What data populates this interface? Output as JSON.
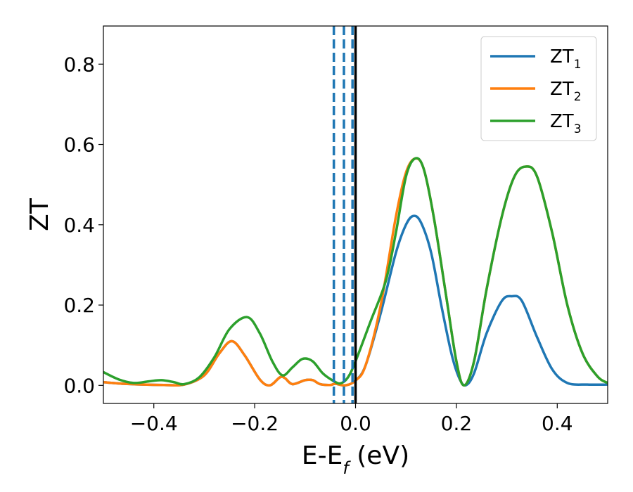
{
  "chart_data": {
    "type": "line",
    "xlabel": {
      "main": "E-E",
      "sub": "f",
      "tail": " (eV)"
    },
    "ylabel": "ZT",
    "xlim": [
      -0.5,
      0.5
    ],
    "ylim": [
      -0.045,
      0.895
    ],
    "x_ticks": [
      -0.4,
      -0.2,
      0.0,
      0.2,
      0.4
    ],
    "x_tick_labels": [
      "−0.4",
      "−0.2",
      "0.0",
      "0.2",
      "0.4"
    ],
    "y_ticks": [
      0.0,
      0.2,
      0.4,
      0.6,
      0.8
    ],
    "y_tick_labels": [
      "0.0",
      "0.2",
      "0.4",
      "0.6",
      "0.8"
    ],
    "grid": false,
    "legend_position": "top-right",
    "series": [
      {
        "name": "ZT",
        "sub": "1",
        "color": "#1f77b4",
        "points": [
          [
            -0.5,
            0.008
          ],
          [
            -0.46,
            0.004
          ],
          [
            -0.42,
            0.002
          ],
          [
            -0.38,
            0.001
          ],
          [
            -0.34,
            0.002
          ],
          [
            -0.3,
            0.025
          ],
          [
            -0.27,
            0.08
          ],
          [
            -0.245,
            0.11
          ],
          [
            -0.22,
            0.075
          ],
          [
            -0.19,
            0.015
          ],
          [
            -0.17,
            0.0
          ],
          [
            -0.15,
            0.02
          ],
          [
            -0.14,
            0.018
          ],
          [
            -0.125,
            0.003
          ],
          [
            -0.1,
            0.013
          ],
          [
            -0.085,
            0.013
          ],
          [
            -0.07,
            0.003
          ],
          [
            -0.05,
            0.001
          ],
          [
            -0.04,
            0.004
          ],
          [
            -0.02,
            0.0
          ],
          [
            0.0,
            0.012
          ],
          [
            0.02,
            0.05
          ],
          [
            0.05,
            0.18
          ],
          [
            0.08,
            0.33
          ],
          [
            0.1,
            0.4
          ],
          [
            0.115,
            0.422
          ],
          [
            0.13,
            0.405
          ],
          [
            0.15,
            0.33
          ],
          [
            0.17,
            0.2
          ],
          [
            0.19,
            0.08
          ],
          [
            0.205,
            0.02
          ],
          [
            0.218,
            0.0
          ],
          [
            0.235,
            0.03
          ],
          [
            0.26,
            0.13
          ],
          [
            0.29,
            0.21
          ],
          [
            0.31,
            0.222
          ],
          [
            0.33,
            0.21
          ],
          [
            0.36,
            0.12
          ],
          [
            0.39,
            0.04
          ],
          [
            0.42,
            0.006
          ],
          [
            0.46,
            0.002
          ],
          [
            0.5,
            0.002
          ]
        ]
      },
      {
        "name": "ZT",
        "sub": "2",
        "color": "#ff7f0e",
        "points": [
          [
            -0.5,
            0.008
          ],
          [
            -0.46,
            0.004
          ],
          [
            -0.42,
            0.002
          ],
          [
            -0.38,
            0.001
          ],
          [
            -0.34,
            0.002
          ],
          [
            -0.3,
            0.025
          ],
          [
            -0.27,
            0.08
          ],
          [
            -0.245,
            0.11
          ],
          [
            -0.22,
            0.075
          ],
          [
            -0.19,
            0.015
          ],
          [
            -0.17,
            0.0
          ],
          [
            -0.15,
            0.02
          ],
          [
            -0.14,
            0.018
          ],
          [
            -0.125,
            0.003
          ],
          [
            -0.1,
            0.013
          ],
          [
            -0.085,
            0.013
          ],
          [
            -0.07,
            0.003
          ],
          [
            -0.05,
            0.001
          ],
          [
            -0.04,
            0.004
          ],
          [
            -0.02,
            0.0
          ],
          [
            0.0,
            0.012
          ],
          [
            0.02,
            0.05
          ],
          [
            0.05,
            0.2
          ],
          [
            0.08,
            0.42
          ],
          [
            0.1,
            0.53
          ],
          [
            0.118,
            0.565
          ],
          [
            0.135,
            0.54
          ],
          [
            0.155,
            0.42
          ],
          [
            0.18,
            0.22
          ],
          [
            0.2,
            0.06
          ],
          [
            0.215,
            0.0
          ],
          [
            0.235,
            0.06
          ],
          [
            0.26,
            0.24
          ],
          [
            0.29,
            0.42
          ],
          [
            0.315,
            0.52
          ],
          [
            0.338,
            0.545
          ],
          [
            0.36,
            0.52
          ],
          [
            0.39,
            0.38
          ],
          [
            0.42,
            0.2
          ],
          [
            0.45,
            0.08
          ],
          [
            0.48,
            0.022
          ],
          [
            0.5,
            0.006
          ]
        ]
      },
      {
        "name": "ZT",
        "sub": "3",
        "color": "#2ca02c",
        "points": [
          [
            -0.5,
            0.033
          ],
          [
            -0.47,
            0.015
          ],
          [
            -0.44,
            0.006
          ],
          [
            -0.41,
            0.01
          ],
          [
            -0.385,
            0.013
          ],
          [
            -0.36,
            0.008
          ],
          [
            -0.34,
            0.003
          ],
          [
            -0.31,
            0.02
          ],
          [
            -0.28,
            0.07
          ],
          [
            -0.25,
            0.14
          ],
          [
            -0.215,
            0.17
          ],
          [
            -0.19,
            0.13
          ],
          [
            -0.165,
            0.06
          ],
          [
            -0.145,
            0.025
          ],
          [
            -0.125,
            0.045
          ],
          [
            -0.105,
            0.066
          ],
          [
            -0.085,
            0.06
          ],
          [
            -0.065,
            0.03
          ],
          [
            -0.045,
            0.012
          ],
          [
            -0.03,
            0.005
          ],
          [
            -0.015,
            0.02
          ],
          [
            0.0,
            0.06
          ],
          [
            0.03,
            0.16
          ],
          [
            0.06,
            0.26
          ],
          [
            0.08,
            0.38
          ],
          [
            0.1,
            0.52
          ],
          [
            0.118,
            0.565
          ],
          [
            0.135,
            0.54
          ],
          [
            0.155,
            0.42
          ],
          [
            0.18,
            0.22
          ],
          [
            0.2,
            0.06
          ],
          [
            0.215,
            0.0
          ],
          [
            0.235,
            0.06
          ],
          [
            0.26,
            0.24
          ],
          [
            0.29,
            0.42
          ],
          [
            0.315,
            0.52
          ],
          [
            0.338,
            0.545
          ],
          [
            0.36,
            0.52
          ],
          [
            0.39,
            0.38
          ],
          [
            0.42,
            0.2
          ],
          [
            0.45,
            0.08
          ],
          [
            0.48,
            0.022
          ],
          [
            0.5,
            0.006
          ]
        ]
      }
    ],
    "vlines": [
      {
        "x": -0.043,
        "style": "dashed",
        "color": "#1f77b4"
      },
      {
        "x": -0.023,
        "style": "dashed",
        "color": "#1f77b4"
      },
      {
        "x": -0.006,
        "style": "dashed",
        "color": "#1f77b4"
      },
      {
        "x": 0.0,
        "style": "solid",
        "color": "#000000"
      }
    ]
  }
}
